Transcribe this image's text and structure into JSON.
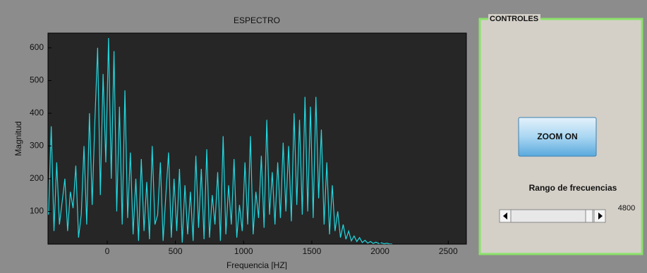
{
  "chart_data": {
    "type": "line",
    "title": "ESPECTRO",
    "x_label": "Frequencia [HZ]",
    "y_label": "Magnitud",
    "x": [
      -430,
      -410,
      -390,
      -370,
      -350,
      -330,
      -310,
      -290,
      -270,
      -250,
      -230,
      -210,
      -190,
      -170,
      -150,
      -130,
      -110,
      -90,
      -70,
      -50,
      -30,
      -10,
      10,
      30,
      50,
      70,
      90,
      110,
      130,
      150,
      170,
      190,
      210,
      230,
      250,
      270,
      290,
      310,
      330,
      350,
      370,
      390,
      410,
      430,
      450,
      470,
      490,
      510,
      530,
      550,
      570,
      590,
      610,
      630,
      650,
      670,
      690,
      710,
      730,
      750,
      770,
      790,
      810,
      830,
      850,
      870,
      890,
      910,
      930,
      950,
      970,
      990,
      1010,
      1030,
      1050,
      1070,
      1090,
      1110,
      1130,
      1150,
      1170,
      1190,
      1210,
      1230,
      1250,
      1270,
      1290,
      1310,
      1330,
      1350,
      1370,
      1390,
      1410,
      1430,
      1450,
      1470,
      1490,
      1510,
      1530,
      1550,
      1570,
      1590,
      1610,
      1630,
      1650,
      1670,
      1690,
      1710,
      1730,
      1750,
      1770,
      1790,
      1810,
      1830,
      1850,
      1870,
      1890,
      1910,
      1930,
      1950,
      1970,
      1990,
      2010,
      2030,
      2050,
      2070,
      2090
    ],
    "series": [
      {
        "color": "#22d8e0",
        "values": [
          90,
          360,
          40,
          250,
          60,
          130,
          200,
          40,
          160,
          110,
          240,
          20,
          90,
          300,
          60,
          400,
          120,
          380,
          600,
          150,
          520,
          250,
          630,
          200,
          590,
          100,
          420,
          60,
          470,
          80,
          280,
          30,
          200,
          10,
          260,
          40,
          190,
          15,
          300,
          60,
          90,
          250,
          10,
          150,
          280,
          20,
          200,
          40,
          230,
          5,
          180,
          30,
          160,
          10,
          270,
          50,
          230,
          15,
          290,
          20,
          150,
          60,
          220,
          10,
          330,
          30,
          180,
          60,
          260,
          20,
          120,
          40,
          250,
          60,
          330,
          30,
          160,
          80,
          270,
          50,
          380,
          90,
          220,
          60,
          250,
          80,
          310,
          100,
          300,
          70,
          400,
          120,
          380,
          90,
          450,
          100,
          420,
          80,
          450,
          140,
          350,
          60,
          250,
          30,
          180,
          40,
          100,
          20,
          60,
          15,
          40,
          10,
          25,
          8,
          20,
          5,
          12,
          3,
          8,
          2,
          6,
          2,
          4,
          1,
          3,
          0,
          0
        ]
      }
    ],
    "xlim": [
      -434,
      2633
    ],
    "ylim": [
      0,
      645
    ],
    "xticks": [
      0,
      500,
      1000,
      1500,
      2000,
      2500
    ],
    "yticks": [
      100,
      200,
      300,
      400,
      500,
      600
    ]
  },
  "controls": {
    "panel_title": "CONTROLES",
    "button": "ZOOM ON",
    "range_label": "Rango de frecuencias",
    "slider_value": "4800"
  }
}
